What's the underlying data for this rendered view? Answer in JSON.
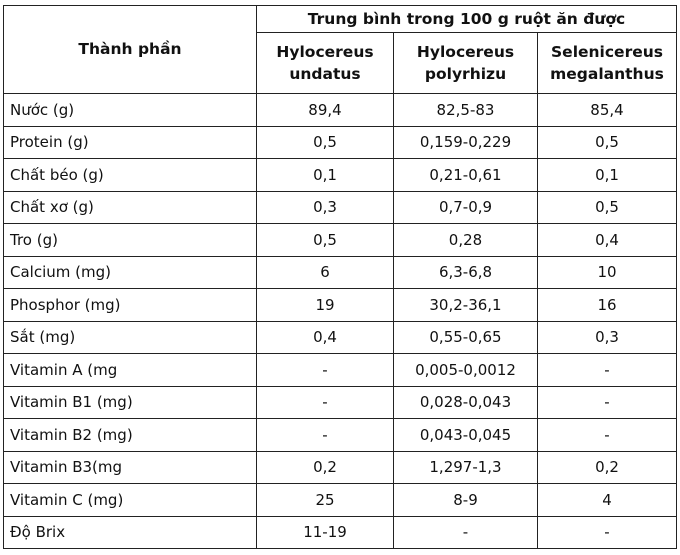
{
  "header": {
    "component": "Thành phần",
    "group": "Trung bình trong 100 g ruột ăn được",
    "species": [
      {
        "genus": "Hylocereus",
        "epithet": "undatus"
      },
      {
        "genus": "Hylocereus",
        "epithet": "polyrhizu"
      },
      {
        "genus": "Selenicereus",
        "epithet": "megalanthus"
      }
    ]
  },
  "rows": [
    {
      "name": "Nước (g)",
      "values": [
        "89,4",
        "82,5-83",
        "85,4"
      ]
    },
    {
      "name": "Protein (g)",
      "values": [
        "0,5",
        "0,159-0,229",
        "0,5"
      ]
    },
    {
      "name": "Chất béo (g)",
      "values": [
        "0,1",
        "0,21-0,61",
        "0,1"
      ]
    },
    {
      "name": "Chất xơ (g)",
      "values": [
        "0,3",
        "0,7-0,9",
        "0,5"
      ]
    },
    {
      "name": "Tro (g)",
      "values": [
        "0,5",
        "0,28",
        "0,4"
      ]
    },
    {
      "name": "Calcium (mg)",
      "values": [
        "6",
        "6,3-6,8",
        "10"
      ]
    },
    {
      "name": "Phosphor (mg)",
      "values": [
        "19",
        "30,2-36,1",
        "16"
      ]
    },
    {
      "name": "Sắt (mg)",
      "values": [
        "0,4",
        "0,55-0,65",
        "0,3"
      ]
    },
    {
      "name": "Vitamin A (mg",
      "values": [
        "-",
        "0,005-0,0012",
        "-"
      ]
    },
    {
      "name": "Vitamin B1 (mg)",
      "values": [
        "-",
        "0,028-0,043",
        "-"
      ]
    },
    {
      "name": "Vitamin B2 (mg)",
      "values": [
        "-",
        "0,043-0,045",
        "-"
      ]
    },
    {
      "name": "Vitamin B3(mg",
      "values": [
        "0,2",
        "1,297-1,3",
        "0,2"
      ]
    },
    {
      "name": "Vitamin C (mg)",
      "values": [
        "25",
        "8-9",
        "4"
      ]
    },
    {
      "name": "Độ Brix",
      "values": [
        "11-19",
        "-",
        "-"
      ]
    }
  ]
}
